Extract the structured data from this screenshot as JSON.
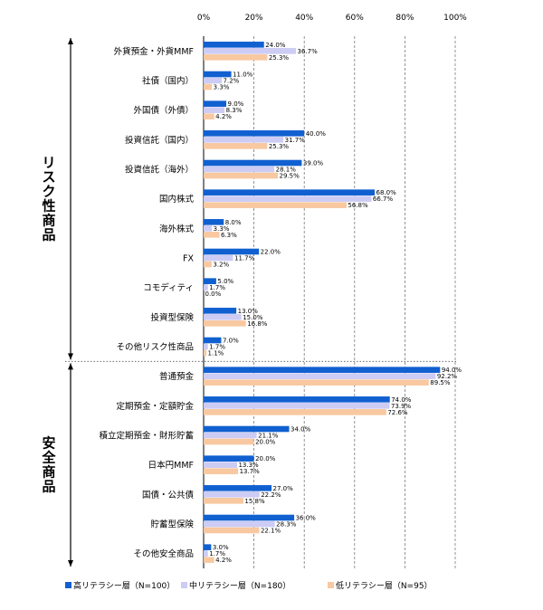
{
  "chart_data": {
    "type": "bar",
    "orientation": "horizontal",
    "xlim": [
      0,
      100
    ],
    "x_ticks": [
      "0%",
      "20%",
      "40%",
      "60%",
      "80%",
      "100%"
    ],
    "grid": "vertical dashed",
    "legend_position": "bottom",
    "groups": [
      {
        "label": "リスク性商品",
        "categories": 11
      },
      {
        "label": "安全商品",
        "categories": 7
      }
    ],
    "categories": [
      "外貨預金・外貨MMF",
      "社債（国内）",
      "外国債（外債）",
      "投資信託（国内）",
      "投資信託（海外）",
      "国内株式",
      "海外株式",
      "FX",
      "コモディティ",
      "投資型保険",
      "その他リスク性商品",
      "普通預金",
      "定期預金・定額貯金",
      "積立定期預金・財形貯蓄",
      "日本円MMF",
      "国債・公共債",
      "貯蓄型保険",
      "その他安全商品"
    ],
    "series": [
      {
        "name": "高リテラシー層（N=100）",
        "color": "#1060d0",
        "values": [
          24.0,
          11.0,
          9.0,
          40.0,
          39.0,
          68.0,
          8.0,
          22.0,
          5.0,
          13.0,
          7.0,
          94.0,
          74.0,
          34.0,
          20.0,
          27.0,
          36.0,
          3.0
        ],
        "labels": [
          "24.0%",
          "11.0%",
          "9.0%",
          "40.0%",
          "39.0%",
          "68.0%",
          "8.0%",
          "22.0%",
          "5.0%",
          "13.0%",
          "7.0%",
          "94.0%",
          "74.0%",
          "34.0%",
          "20.0%",
          "27.0%",
          "36.0%",
          "3.0%"
        ]
      },
      {
        "name": "中リテラシー層（N=180）",
        "color": "#ccccf4",
        "values": [
          36.7,
          7.2,
          8.3,
          31.7,
          28.1,
          66.7,
          3.3,
          11.7,
          1.7,
          15.0,
          1.7,
          92.2,
          73.9,
          21.1,
          13.3,
          22.2,
          28.3,
          1.7
        ],
        "labels": [
          "36.7%",
          "7.2%",
          "8.3%",
          "31.7%",
          "28.1%",
          "66.7%",
          "3.3%",
          "11.7%",
          "1.7%",
          "15.0%",
          "1.7%",
          "92.2%",
          "73.9%",
          "21.1%",
          "13.3%",
          "22.2%",
          "28.3%",
          "1.7%"
        ]
      },
      {
        "name": "低リテラシー層（N=95）",
        "color": "#f8c8a0",
        "values": [
          25.3,
          3.3,
          4.2,
          25.3,
          29.5,
          56.8,
          6.3,
          3.2,
          0.0,
          16.8,
          1.1,
          89.5,
          72.6,
          20.0,
          13.7,
          15.8,
          22.1,
          4.2
        ],
        "labels": [
          "25.3%",
          "3.3%",
          "4.2%",
          "25.3%",
          "29.5%",
          "56.8%",
          "6.3%",
          "3.2%",
          "0.0%",
          "16.8%",
          "1.1%",
          "89.5%",
          "72.6%",
          "20.0%",
          "13.7%",
          "15.8%",
          "22.1%",
          "4.2%"
        ]
      }
    ]
  }
}
